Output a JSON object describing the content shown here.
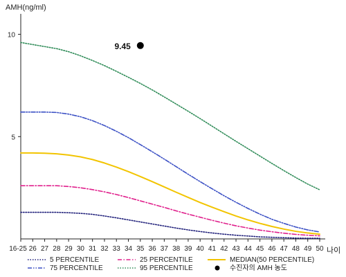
{
  "chart_data": {
    "type": "line",
    "title": "",
    "ylabel": "AMH(ng/ml)",
    "xlabel": "나이",
    "ylim": [
      0,
      11
    ],
    "yticks": [
      "5",
      "10"
    ],
    "grid": false,
    "legend_position": "bottom",
    "x": [
      "16-25",
      "26",
      "27",
      "28",
      "29",
      "30",
      "31",
      "32",
      "33",
      "34",
      "35",
      "36",
      "37",
      "38",
      "39",
      "40",
      "41",
      "42",
      "43",
      "44",
      "45",
      "46",
      "47",
      "48",
      "49",
      "50"
    ],
    "series": [
      {
        "name": "5 PERCENTILE",
        "color": "#1f1f7a",
        "dash": "dotted",
        "values": [
          1.3,
          1.3,
          1.3,
          1.3,
          1.28,
          1.25,
          1.2,
          1.12,
          1.03,
          0.93,
          0.83,
          0.73,
          0.63,
          0.53,
          0.44,
          0.36,
          0.29,
          0.23,
          0.18,
          0.14,
          0.1,
          0.08,
          0.06,
          0.04,
          0.03,
          0.03
        ]
      },
      {
        "name": "25 PERCENTILE",
        "color": "#e0208c",
        "dash": "dashdot",
        "values": [
          2.6,
          2.6,
          2.6,
          2.6,
          2.56,
          2.5,
          2.41,
          2.3,
          2.17,
          2.02,
          1.86,
          1.7,
          1.54,
          1.37,
          1.21,
          1.06,
          0.91,
          0.77,
          0.64,
          0.53,
          0.43,
          0.35,
          0.28,
          0.22,
          0.18,
          0.15
        ]
      },
      {
        "name": "MEDIAN(50 PERCENTILE)",
        "color": "#f2c400",
        "dash": "solid",
        "values": [
          4.2,
          4.2,
          4.19,
          4.16,
          4.1,
          4.01,
          3.88,
          3.71,
          3.51,
          3.29,
          3.05,
          2.8,
          2.54,
          2.28,
          2.03,
          1.78,
          1.55,
          1.33,
          1.12,
          0.93,
          0.76,
          0.61,
          0.48,
          0.37,
          0.29,
          0.23
        ]
      },
      {
        "name": "75 PERCENTILE",
        "color": "#3a4fc4",
        "dash": "dashdotdot",
        "values": [
          6.2,
          6.2,
          6.2,
          6.18,
          6.1,
          5.97,
          5.78,
          5.54,
          5.26,
          4.95,
          4.61,
          4.26,
          3.9,
          3.53,
          3.16,
          2.8,
          2.45,
          2.11,
          1.79,
          1.49,
          1.21,
          0.96,
          0.76,
          0.58,
          0.44,
          0.34
        ]
      },
      {
        "name": "95 PERCENTILE",
        "color": "#2e8b57",
        "dash": "dotted",
        "values": [
          9.6,
          9.5,
          9.4,
          9.3,
          9.15,
          8.95,
          8.72,
          8.47,
          8.19,
          7.9,
          7.6,
          7.28,
          6.94,
          6.59,
          6.24,
          5.88,
          5.51,
          5.14,
          4.77,
          4.41,
          4.05,
          3.69,
          3.34,
          3.0,
          2.68,
          2.4
        ]
      }
    ],
    "highlight_point": {
      "label": "9.45",
      "x": "35",
      "y": 9.45,
      "legend": "수진자의 AMH 농도"
    }
  }
}
